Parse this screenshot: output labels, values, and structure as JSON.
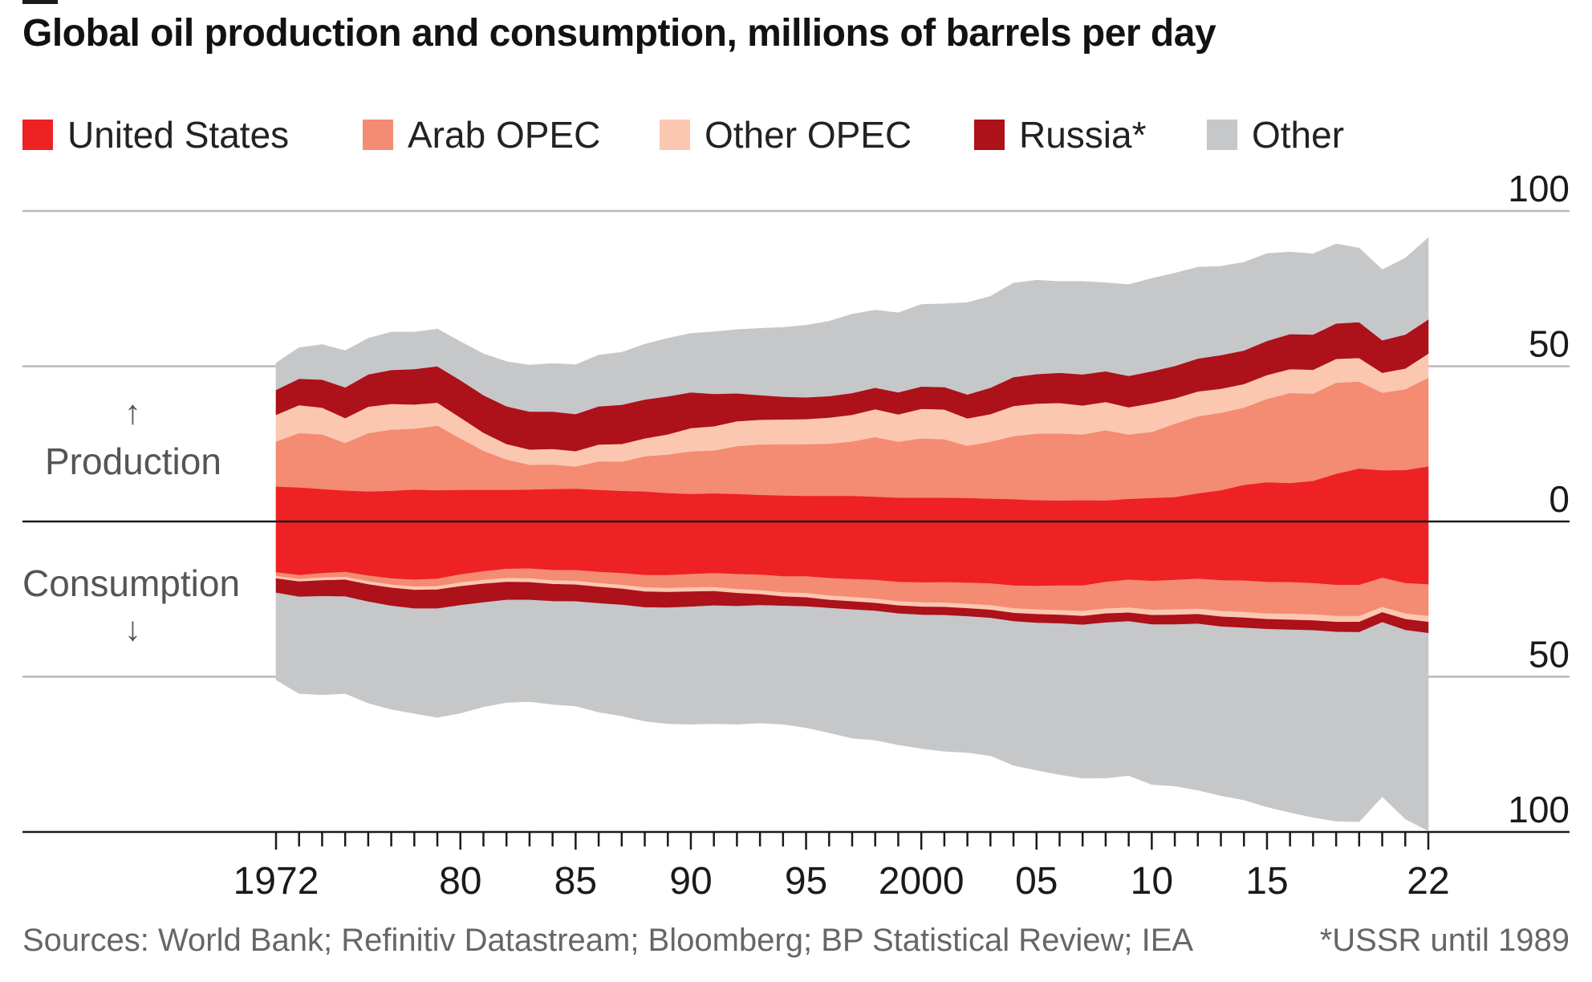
{
  "title": "Global oil production and consumption, millions of barrels per day",
  "legend": [
    {
      "label": "United States",
      "color": "#ee2124"
    },
    {
      "label": "Arab OPEC",
      "color": "#f48b73"
    },
    {
      "label": "Other OPEC",
      "color": "#fbc7b0"
    },
    {
      "label": "Russia*",
      "color": "#ad1119"
    },
    {
      "label": "Other",
      "color": "#c6c7c9"
    }
  ],
  "labels": {
    "production": "Production",
    "consumption": "Consumption",
    "up_arrow": "↑",
    "down_arrow": "↓"
  },
  "footer": {
    "source": "Sources: World Bank; Refinitiv Datastream; Bloomberg; BP Statistical Review; IEA",
    "note": "*USSR until 1989"
  },
  "chart_data": {
    "type": "area",
    "title": "Global oil production and consumption, millions of barrels per day",
    "x": [
      1972,
      1973,
      1974,
      1975,
      1976,
      1977,
      1978,
      1979,
      1980,
      1981,
      1982,
      1983,
      1984,
      1985,
      1986,
      1987,
      1988,
      1989,
      1990,
      1991,
      1992,
      1993,
      1994,
      1995,
      1996,
      1997,
      1998,
      1999,
      2000,
      2001,
      2002,
      2003,
      2004,
      2005,
      2006,
      2007,
      2008,
      2009,
      2010,
      2011,
      2012,
      2013,
      2014,
      2015,
      2016,
      2017,
      2018,
      2019,
      2020,
      2021,
      2022
    ],
    "x_tick_labels": [
      {
        "x": 1972,
        "label": "1972"
      },
      {
        "x": 1980,
        "label": "80"
      },
      {
        "x": 1985,
        "label": "85"
      },
      {
        "x": 1990,
        "label": "90"
      },
      {
        "x": 1995,
        "label": "95"
      },
      {
        "x": 2000,
        "label": "2000"
      },
      {
        "x": 2005,
        "label": "05"
      },
      {
        "x": 2010,
        "label": "10"
      },
      {
        "x": 2015,
        "label": "15"
      },
      {
        "x": 2022,
        "label": "22"
      }
    ],
    "y_ticks": [
      {
        "value": 100,
        "label": "100"
      },
      {
        "value": 50,
        "label": "50"
      },
      {
        "value": 0,
        "label": "0"
      },
      {
        "value": -50,
        "label": "50"
      },
      {
        "value": -100,
        "label": "100"
      }
    ],
    "ylim": [
      -100,
      100
    ],
    "stacked": true,
    "production": {
      "series": [
        {
          "name": "United States",
          "values": [
            11.3,
            11.0,
            10.5,
            10.0,
            9.7,
            9.9,
            10.3,
            10.1,
            10.2,
            10.2,
            10.2,
            10.3,
            10.5,
            10.6,
            10.2,
            9.9,
            9.7,
            9.2,
            8.9,
            9.1,
            8.9,
            8.6,
            8.4,
            8.3,
            8.3,
            8.3,
            8.0,
            7.7,
            7.7,
            7.7,
            7.6,
            7.4,
            7.2,
            6.9,
            6.8,
            6.9,
            6.8,
            7.3,
            7.6,
            7.9,
            9.1,
            10.1,
            11.8,
            12.7,
            12.4,
            13.1,
            15.4,
            17.1,
            16.5,
            16.6,
            17.8
          ]
        },
        {
          "name": "Arab OPEC",
          "values": [
            14.5,
            17.5,
            17.6,
            15.3,
            18.8,
            19.7,
            19.6,
            20.8,
            16.6,
            12.6,
            9.8,
            8.0,
            7.9,
            7.1,
            9.2,
            9.4,
            11.3,
            12.4,
            13.7,
            13.8,
            15.4,
            16.2,
            16.5,
            16.6,
            16.8,
            17.5,
            19.2,
            18.0,
            19.1,
            18.8,
            16.8,
            18.3,
            20.3,
            21.4,
            21.6,
            21.1,
            22.6,
            20.7,
            21.3,
            23.6,
            24.8,
            24.9,
            24.9,
            26.8,
            29.0,
            28.1,
            29.3,
            28.0,
            25.0,
            26.0,
            28.5
          ]
        },
        {
          "name": "Other OPEC",
          "values": [
            8.6,
            9.0,
            8.6,
            8.0,
            8.5,
            8.3,
            7.8,
            7.4,
            6.7,
            5.8,
            5.0,
            4.9,
            5.0,
            5.0,
            5.4,
            5.7,
            5.8,
            6.5,
            7.5,
            7.8,
            8.0,
            8.0,
            8.0,
            8.1,
            8.4,
            8.6,
            9.0,
            8.8,
            9.5,
            9.6,
            8.8,
            8.9,
            9.7,
            9.7,
            9.8,
            9.4,
            9.1,
            8.8,
            9.2,
            8.2,
            8.0,
            7.8,
            7.6,
            7.7,
            7.7,
            7.7,
            7.7,
            7.6,
            6.4,
            6.7,
            7.8
          ]
        },
        {
          "name": "Russia*",
          "values": [
            8.0,
            8.5,
            9.0,
            9.9,
            10.4,
            10.9,
            11.4,
            11.7,
            12.0,
            12.1,
            12.1,
            12.2,
            12.0,
            11.9,
            12.3,
            12.6,
            12.5,
            12.2,
            11.5,
            10.4,
            9.0,
            7.9,
            7.3,
            7.0,
            6.9,
            7.0,
            6.9,
            7.1,
            7.2,
            7.2,
            7.7,
            8.5,
            9.3,
            9.5,
            9.7,
            10.0,
            9.9,
            10.1,
            10.3,
            10.4,
            10.6,
            10.8,
            10.8,
            11.0,
            11.3,
            11.3,
            11.4,
            11.5,
            10.5,
            10.9,
            11.0
          ]
        },
        {
          "name": "Other",
          "values": [
            8.6,
            10.0,
            11.3,
            11.8,
            11.6,
            12.2,
            11.9,
            12.0,
            12.4,
            13.3,
            14.4,
            15.0,
            15.5,
            15.9,
            16.5,
            16.9,
            17.8,
            18.7,
            19.0,
            20.0,
            20.5,
            21.5,
            22.3,
            23.2,
            24.1,
            25.4,
            25.0,
            25.6,
            26.4,
            26.8,
            29.6,
            29.4,
            30.3,
            30.2,
            29.4,
            29.9,
            28.5,
            29.4,
            29.9,
            29.9,
            29.4,
            28.6,
            28.4,
            28.1,
            26.4,
            26.0,
            25.6,
            23.9,
            22.7,
            24.6,
            26.3
          ]
        }
      ],
      "totals": [
        51,
        56,
        57,
        55,
        59,
        61,
        61,
        62,
        58,
        54,
        52,
        50,
        51,
        50.5,
        53.6,
        54.5,
        57.1,
        59,
        60.6,
        60.1,
        61.8,
        62.2,
        62.5,
        63.2,
        64.5,
        66.8,
        68.1,
        67.2,
        69.9,
        70.1,
        70.5,
        72.5,
        76.8,
        77.7,
        77.3,
        77.3,
        76.9,
        76.3,
        78.3,
        80,
        81.9,
        82.2,
        83.5,
        86.3,
        86.8,
        86.2,
        89.4,
        88.1,
        81.1,
        84.8,
        91.4
      ]
    },
    "consumption": {
      "series": [
        {
          "name": "United States",
          "values": [
            16.4,
            17.3,
            16.7,
            16.3,
            17.5,
            18.4,
            18.8,
            18.5,
            17.1,
            16.1,
            15.3,
            15.2,
            15.7,
            15.7,
            16.3,
            16.7,
            17.3,
            17.3,
            17.0,
            16.7,
            17.0,
            17.2,
            17.7,
            17.7,
            18.3,
            18.6,
            18.9,
            19.5,
            19.7,
            19.6,
            19.8,
            20.0,
            20.7,
            20.8,
            20.7,
            20.7,
            19.5,
            18.8,
            19.2,
            18.9,
            18.5,
            19.0,
            19.1,
            19.5,
            19.6,
            19.9,
            20.5,
            20.5,
            18.2,
            19.9,
            20.3
          ]
        },
        {
          "name": "Arab OPEC",
          "values": [
            1.2,
            1.3,
            1.4,
            1.6,
            1.8,
            2.0,
            2.2,
            2.4,
            2.6,
            2.8,
            3.0,
            3.2,
            3.3,
            3.5,
            3.6,
            3.8,
            4.0,
            4.2,
            4.3,
            4.5,
            4.8,
            5.0,
            5.2,
            5.4,
            5.6,
            5.8,
            6.0,
            6.2,
            6.4,
            6.6,
            6.8,
            7.0,
            7.3,
            7.6,
            7.9,
            8.2,
            8.6,
            9.0,
            9.3,
            9.5,
            9.7,
            9.9,
            10.1,
            10.2,
            10.2,
            10.1,
            10.0,
            10.0,
            9.4,
            9.8,
            10.2
          ]
        },
        {
          "name": "Other OPEC",
          "values": [
            0.8,
            0.8,
            0.9,
            0.9,
            1.0,
            1.0,
            1.1,
            1.1,
            1.2,
            1.2,
            1.2,
            1.2,
            1.2,
            1.2,
            1.2,
            1.2,
            1.3,
            1.3,
            1.3,
            1.3,
            1.3,
            1.3,
            1.3,
            1.4,
            1.4,
            1.4,
            1.4,
            1.4,
            1.4,
            1.4,
            1.4,
            1.5,
            1.5,
            1.5,
            1.5,
            1.6,
            1.6,
            1.6,
            1.7,
            1.7,
            1.7,
            1.8,
            1.8,
            1.8,
            1.9,
            1.9,
            1.9,
            1.9,
            1.7,
            1.8,
            1.9
          ]
        },
        {
          "name": "Russia*",
          "values": [
            4.6,
            4.9,
            5.1,
            5.4,
            5.6,
            5.8,
            6.0,
            6.1,
            6.1,
            6.0,
            5.8,
            5.7,
            5.5,
            5.4,
            5.3,
            5.2,
            5.1,
            5.0,
            4.9,
            4.6,
            4.2,
            3.5,
            3.0,
            2.9,
            2.6,
            2.6,
            2.5,
            2.6,
            2.6,
            2.6,
            2.6,
            2.6,
            2.7,
            2.8,
            2.8,
            2.8,
            2.9,
            2.8,
            3.0,
            3.1,
            3.1,
            3.2,
            3.3,
            3.2,
            3.2,
            3.2,
            3.2,
            3.3,
            3.2,
            3.5,
            3.6
          ]
        },
        {
          "name": "Other",
          "values": [
            28.0,
            31.1,
            31.7,
            31.2,
            32.6,
            33.3,
            33.7,
            35.0,
            34.7,
            33.6,
            33.0,
            32.7,
            33.2,
            33.6,
            35.0,
            35.7,
            36.6,
            37.3,
            37.8,
            38.0,
            38.0,
            37.9,
            38.1,
            39.0,
            40.1,
            41.4,
            41.6,
            42.2,
            43.0,
            43.8,
            43.8,
            44.3,
            46.3,
            47.4,
            48.6,
            49.4,
            50.0,
            49.6,
            51.5,
            52.0,
            53.5,
            54.4,
            55.4,
            57.2,
            58.8,
            60.2,
            60.9,
            61.0,
            56.1,
            60.8,
            63.6
          ]
        }
      ],
      "totals": [
        51,
        55.4,
        55.8,
        55.4,
        58.5,
        60.5,
        61.8,
        63.1,
        61.7,
        59.7,
        58.3,
        58,
        58.9,
        59.4,
        61.4,
        62.6,
        64.3,
        65.1,
        65.3,
        65.1,
        65.3,
        64.9,
        65.3,
        66.4,
        68,
        69.8,
        70.4,
        71.9,
        73.1,
        74,
        74.4,
        75.4,
        78.5,
        80.1,
        81.5,
        82.7,
        82.6,
        81.8,
        84.7,
        85.2,
        86.5,
        88.3,
        89.7,
        91.9,
        93.7,
        95.3,
        96.5,
        96.7,
        88.6,
        95.8,
        99.6
      ]
    }
  }
}
